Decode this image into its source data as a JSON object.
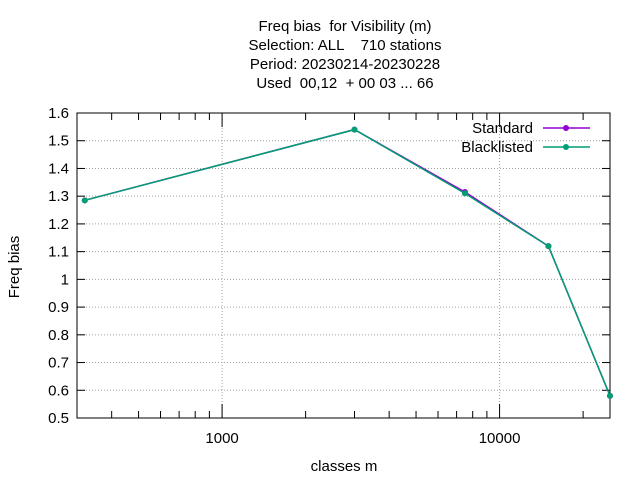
{
  "chart_data": {
    "type": "line",
    "title_lines": [
      "Freq bias  for Visibility (m)",
      "Selection: ALL    710 stations",
      "Period: 20230214-20230228",
      "Used  00,12  + 00 03 ... 66"
    ],
    "xlabel": "classes m",
    "ylabel": "Freq bias",
    "x_scale": "log",
    "xlim": [
      300,
      25000
    ],
    "ylim": [
      0.5,
      1.6
    ],
    "x_tick_labels": [
      {
        "value": 1000,
        "label": "1000"
      },
      {
        "value": 10000,
        "label": "10000"
      }
    ],
    "y_ticks": [
      0.5,
      0.6,
      0.7,
      0.8,
      0.9,
      1,
      1.1,
      1.2,
      1.3,
      1.4,
      1.5,
      1.6
    ],
    "y_tick_labels": [
      "0.5",
      "0.6",
      "0.7",
      "0.8",
      "0.9",
      "1",
      "1.1",
      "1.2",
      "1.3",
      "1.4",
      "1.5",
      "1.6"
    ],
    "grid": true,
    "legend_position": "top-right",
    "series": [
      {
        "name": "Standard",
        "color": "#9400d3",
        "x": [
          320,
          3000,
          7500,
          15000,
          25000
        ],
        "y": [
          1.285,
          1.54,
          1.315,
          1.12,
          0.58
        ]
      },
      {
        "name": "Blacklisted",
        "color": "#009e73",
        "x": [
          320,
          3000,
          7500,
          15000,
          25000
        ],
        "y": [
          1.285,
          1.54,
          1.31,
          1.12,
          0.58
        ]
      }
    ]
  }
}
